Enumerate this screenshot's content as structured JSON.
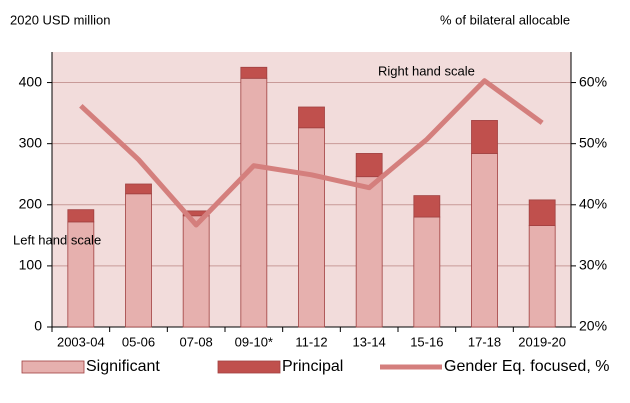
{
  "chart_data": {
    "type": "bar_line",
    "y_axis_label": "2020 USD million",
    "y2_axis_label": "% of bilateral allocable",
    "annotations": [
      "Left hand scale",
      "Right hand scale"
    ],
    "categories": [
      "2003-04",
      "05-06",
      "07-08",
      "09-10*",
      "11-12",
      "13-14",
      "15-16",
      "17-18",
      "2019-20"
    ],
    "series": [
      {
        "name": "Significant",
        "type": "bar",
        "color": "#e6b0ae",
        "values": [
          172,
          218,
          182,
          407,
          326,
          246,
          180,
          284,
          166
        ]
      },
      {
        "name": "Principal",
        "type": "bar",
        "color": "#c0504d",
        "values": [
          20,
          16,
          8,
          18,
          34,
          38,
          35,
          54,
          42
        ]
      },
      {
        "name": "Gender Eq. focused, %",
        "type": "line",
        "axis": "y2",
        "color": "#d47f7d",
        "values": [
          56.2,
          47.4,
          36.7,
          46.4,
          44.9,
          42.8,
          50.7,
          60.3,
          53.4
        ]
      }
    ],
    "stacked": true,
    "ylim": [
      0,
      450
    ],
    "yticks": [
      0,
      100,
      200,
      300,
      400
    ],
    "y2lim": [
      20,
      65
    ],
    "y2ticks": [
      {
        "value": 20,
        "label": "20%"
      },
      {
        "value": 30,
        "label": "30%"
      },
      {
        "value": 40,
        "label": "40%"
      },
      {
        "value": 50,
        "label": "50%"
      },
      {
        "value": 60,
        "label": "60%"
      }
    ],
    "grid": true,
    "legend": "bottom"
  }
}
